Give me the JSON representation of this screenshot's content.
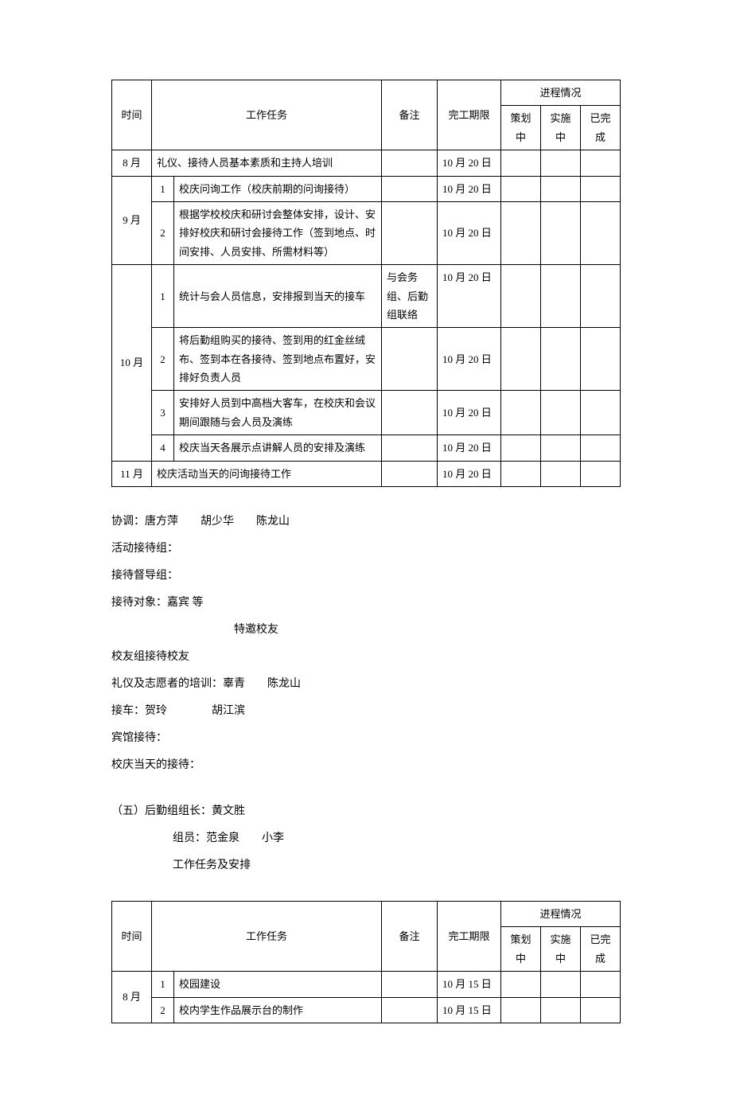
{
  "table1": {
    "headers": {
      "time": "时间",
      "task": "工作任务",
      "note": "备注",
      "deadline": "完工期限",
      "progress": "进程情况",
      "planning": "策划中",
      "implementing": "实施中",
      "done": "已完成"
    },
    "rows": [
      {
        "time": "8 月",
        "idx": "",
        "task": "礼仪、接待人员基本素质和主持人培训",
        "note": "",
        "deadline": "10 月 20 日"
      },
      {
        "time": "9 月",
        "idx": "1",
        "task": "校庆问询工作（校庆前期的问询接待）",
        "note": "",
        "deadline": "10 月 20 日",
        "rowspan": 2
      },
      {
        "idx": "2",
        "task": "根据学校校庆和研讨会整体安排，设计、安排好校庆和研讨会接待工作（签到地点、时间安排、人员安排、所需材料等）",
        "note": "",
        "deadline": "10 月 20 日"
      },
      {
        "time": "10 月",
        "idx": "1",
        "task": "统计与会人员信息，安排报到当天的接车",
        "note": "与会务组、后勤组联络",
        "deadline": "10 月 20 日",
        "rowspan": 4
      },
      {
        "idx": "2",
        "task": "将后勤组购买的接待、签到用的红金丝绒布、签到本在各接待、签到地点布置好，安排好负责人员",
        "note": "",
        "deadline": "10 月 20 日"
      },
      {
        "idx": "3",
        "task": "安排好人员到中高档大客车，在校庆和会议期间跟随与会人员及演练",
        "note": "",
        "deadline": "10 月 20 日"
      },
      {
        "idx": "4",
        "task": "校庆当天各展示点讲解人员的安排及演练",
        "note": "",
        "deadline": "10 月 20 日"
      },
      {
        "time": "11 月",
        "idx": "",
        "task": "校庆活动当天的问询接待工作",
        "note": "",
        "deadline": "10 月 20 日"
      }
    ]
  },
  "textBlock": {
    "line1": "协调：唐方萍　　胡少华　　陈龙山",
    "line2": "活动接待组：",
    "line3": "接待督导组：",
    "line4": "接待对象：嘉宾 等",
    "line5": "特邀校友",
    "line6": "校友组接待校友",
    "line7": "礼仪及志愿者的培训：辜青　　陈龙山",
    "line8": "接车：贺玲　　　　胡江滨",
    "line9": "宾馆接待：",
    "line10": "校庆当天的接待："
  },
  "section5": {
    "line1": "（五）后勤组组长：黄文胜",
    "line2": "组员：范金泉　　小李",
    "line3": "工作任务及安排"
  },
  "table2": {
    "headers": {
      "time": "时间",
      "task": "工作任务",
      "note": "备注",
      "deadline": "完工期限",
      "progress": "进程情况",
      "planning": "策划中",
      "implementing": "实施中",
      "done": "已完成"
    },
    "rows": [
      {
        "time": "8 月",
        "idx": "1",
        "task": "校园建设",
        "note": "",
        "deadline": "10 月 15 日",
        "rowspan": 2
      },
      {
        "idx": "2",
        "task": "校内学生作品展示台的制作",
        "note": "",
        "deadline": "10 月 15 日"
      }
    ]
  }
}
